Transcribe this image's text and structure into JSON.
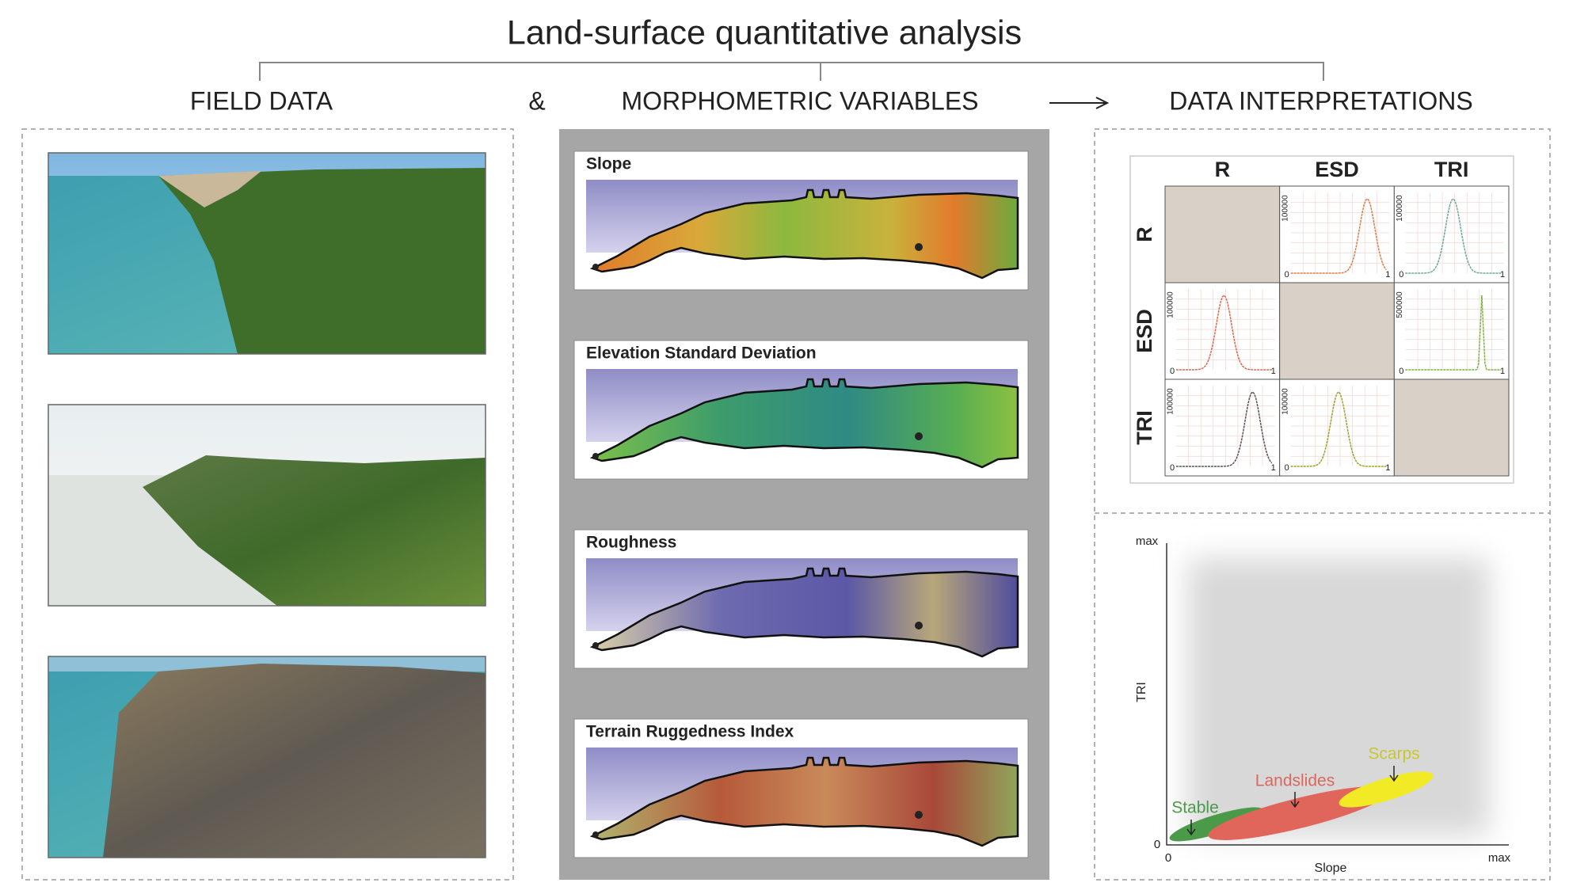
{
  "header": {
    "title": "Land-surface quantitative analysis"
  },
  "sections": {
    "field_data": "FIELD DATA",
    "connector": "&",
    "morphometric": "MORPHOMETRIC VARIABLES",
    "interpretations": "DATA INTERPRETATIONS"
  },
  "maps": [
    {
      "title": "Slope"
    },
    {
      "title": "Elevation Standard Deviation"
    },
    {
      "title": "Roughness"
    },
    {
      "title": "Terrain Ruggedness Index"
    }
  ],
  "matrix": {
    "columns": [
      "R",
      "ESD",
      "TRI"
    ],
    "rows": [
      {
        "label": "R",
        "cells": [
          null,
          {
            "y_tick": "100000",
            "origin": "0",
            "end": "1"
          },
          {
            "y_tick": "100000",
            "origin": "0",
            "end": "1"
          }
        ]
      },
      {
        "label": "ESD",
        "cells": [
          {
            "y_tick": "100000",
            "origin": "0",
            "end": "1"
          },
          null,
          {
            "y_tick": "500000",
            "origin": "0",
            "end": "1"
          }
        ]
      },
      {
        "label": "TRI",
        "cells": [
          {
            "y_tick": "100000",
            "origin": "0",
            "end": "1"
          },
          {
            "y_tick": "100000",
            "origin": "0",
            "end": "1"
          },
          null
        ]
      }
    ]
  },
  "scatter": {
    "y_max": "max",
    "y_origin": "0",
    "x_origin": "0",
    "x_max": "max",
    "y_label": "TRI",
    "x_label": "Slope",
    "classes": [
      "Stable",
      "Landslides",
      "Scarps"
    ]
  }
}
